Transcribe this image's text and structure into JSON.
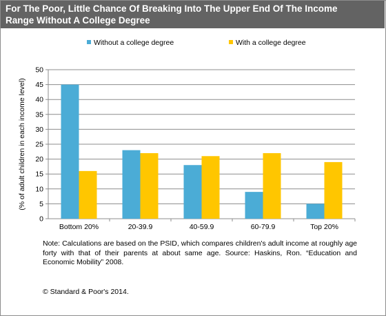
{
  "title": {
    "line1": "For The Poor, Little Chance Of Breaking Into The Upper End Of The Income",
    "line2": "Range Without A College Degree"
  },
  "chart_data": {
    "type": "bar",
    "categories": [
      "Bottom 20%",
      "20-39.9",
      "40-59.9",
      "60-79.9",
      "Top 20%"
    ],
    "series": [
      {
        "name": "Without a college degree",
        "color": "#4bacd6",
        "values": [
          45,
          23,
          18,
          9,
          5
        ]
      },
      {
        "name": "With a college degree",
        "color": "#ffc600",
        "values": [
          16,
          22,
          21,
          22,
          19
        ]
      }
    ],
    "ylabel": "(% of adult children in each income level)",
    "ylim": [
      0,
      50
    ],
    "yticks": [
      0,
      5,
      10,
      15,
      20,
      25,
      30,
      35,
      40,
      45,
      50
    ],
    "grid": true,
    "legend": "top"
  },
  "note": "Note: Calculations are based on the PSID, which compares children's adult income at roughly age forty with that of their parents at about same age. Source: Haskins, Ron. “Education and Economic Mobility” 2008.",
  "copyright": "© Standard & Poor's 2014."
}
